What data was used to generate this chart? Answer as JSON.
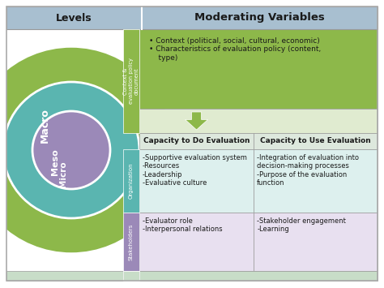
{
  "title_left": "Levels",
  "title_right": "Moderating Variables",
  "header_bg": "#a8bfd0",
  "macro_circle_color": "#8db84a",
  "meso_circle_color": "#5ab5b0",
  "micro_circle_color": "#9b89b8",
  "macro_label": "Macro",
  "meso_label": "Meso",
  "micro_label": "Micro",
  "macro_sub_label": "Context &\nevaluation policy\ndocument",
  "macro_sub_color": "#8db84a",
  "meso_sub_label": "Organization",
  "meso_sub_color": "#5ab5b0",
  "micro_sub_label": "Stakeholders",
  "micro_sub_color": "#9b89b8",
  "macro_content_bg": "#8db84a",
  "macro_content_text": "• Context (political, social, cultural, economic)\n• Characteristics of evaluation policy (content,\n    type)",
  "arrow_color": "#8db84a",
  "capacity_do_label": "Capacity to Do Evaluation",
  "capacity_use_label": "Capacity to Use Evaluation",
  "capacity_header_bg": "#dde8dd",
  "meso_do_text": "-Supportive evaluation system\n-Resources\n-Leadership\n-Evaluative culture",
  "meso_use_text": "-Integration of evaluation into\ndecision-making processes\n-Purpose of the evaluation\nfunction",
  "meso_do_bg": "#ddf0ee",
  "meso_use_bg": "#ddf0ee",
  "micro_do_text": "-Evaluator role\n-Interpersonal relations",
  "micro_use_text": "-Stakeholder engagement\n-Learning",
  "micro_do_bg": "#e8e0f0",
  "micro_use_bg": "#e8e0f0",
  "bottom_strip_bg": "#c8ddc8",
  "outer_bg": "#ffffff"
}
